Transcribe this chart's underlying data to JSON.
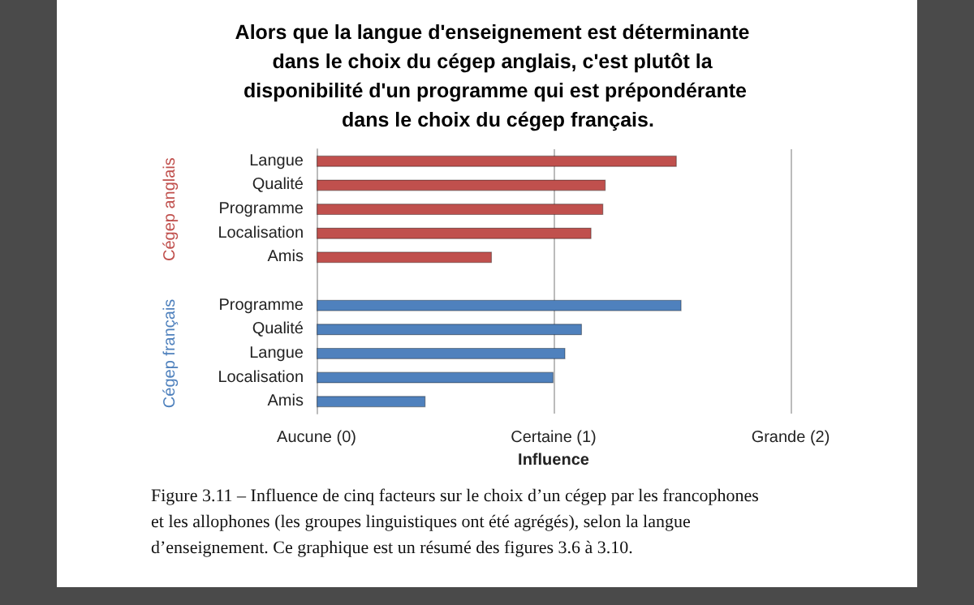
{
  "chart_data": {
    "type": "bar",
    "orientation": "horizontal",
    "title": "Alors que la langue d'enseignement est déterminante dans le choix du cégep anglais, c'est plutôt la disponibilité d'un programme qui est prépondérante dans le choix du cégep français.",
    "categories": [
      "Langue",
      "Qualité",
      "Programme",
      "Localisation",
      "Amis",
      null,
      "Programme",
      "Qualité",
      "Langue",
      "Localisation",
      "Amis"
    ],
    "series": [
      {
        "name": "Cégep anglais",
        "color": "#c0504d",
        "values": [
          1.52,
          1.22,
          1.21,
          1.16,
          0.74,
          null,
          null,
          null,
          null,
          null,
          null
        ]
      },
      {
        "name": "Cégep français",
        "color": "#4f81bd",
        "values": [
          null,
          null,
          null,
          null,
          null,
          null,
          1.54,
          1.12,
          1.05,
          1.0,
          0.46
        ]
      }
    ],
    "xlim": [
      0,
      2
    ],
    "xticks": [
      {
        "value": 0,
        "label": "Aucune (0)"
      },
      {
        "value": 1,
        "label": "Certaine (1)"
      },
      {
        "value": 2,
        "label": "Grande (2)"
      }
    ],
    "xlabel": "Influence",
    "grid": "x",
    "annotations": [
      "Figure 3.11 – Influence de cinq facteurs sur le choix d’un cégep par les francophones et les allophones (les groupes linguistiques ont été agrégés), selon la langue d’enseignement. Ce graphique est un résumé des figures 3.6 à 3.10."
    ]
  }
}
